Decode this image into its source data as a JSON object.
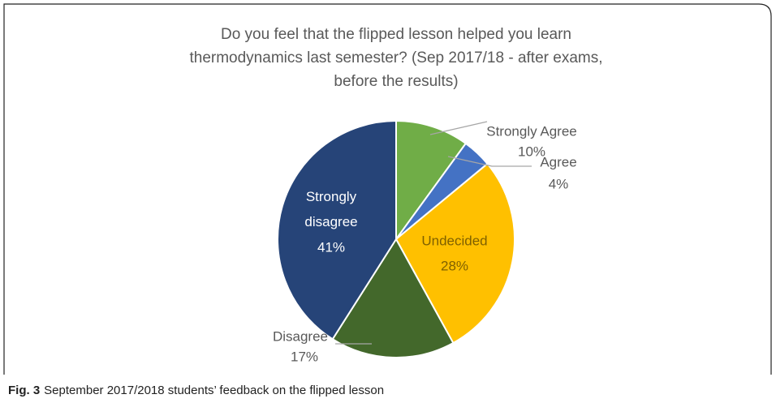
{
  "chart_data": {
    "type": "pie",
    "title": [
      "Do you feel that the flipped lesson helped you learn",
      "thermodynamics last semester? (Sep 2017/18 - after exams,",
      "before the results)"
    ],
    "categories": [
      "Strongly Agree",
      "Agree",
      "Undecided",
      "Disagree",
      "Strongly disagree"
    ],
    "values": [
      10,
      4,
      28,
      17,
      41
    ],
    "value_labels": [
      "10%",
      "4%",
      "28%",
      "17%",
      "41%"
    ],
    "colors": [
      "#70ad47",
      "#4472c4",
      "#ffc000",
      "#43682b",
      "#264478"
    ]
  },
  "caption": {
    "label": "Fig. 3",
    "text": "September 2017/2018 students’ feedback on the flipped lesson"
  }
}
